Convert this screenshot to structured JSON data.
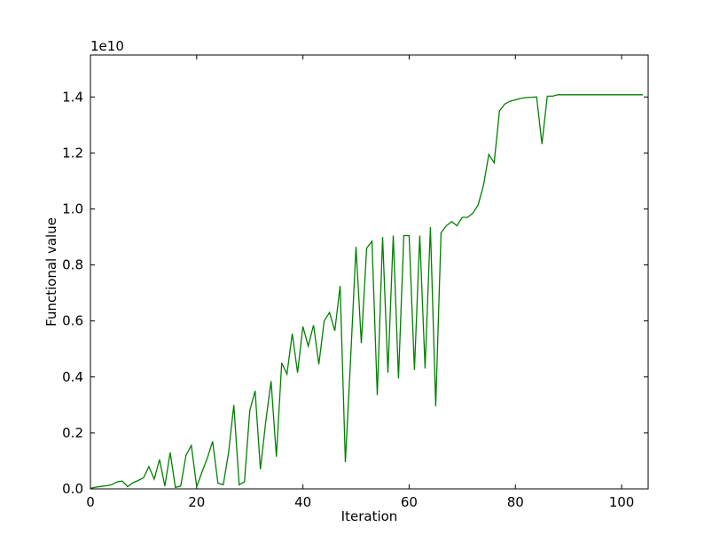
{
  "chart_data": {
    "type": "line",
    "title": "",
    "xlabel": "Iteration",
    "ylabel": "Functional value",
    "offset_label": "1e10",
    "xlim": [
      0,
      105
    ],
    "ylim": [
      0,
      1.55
    ],
    "xticks": [
      0,
      20,
      40,
      60,
      80,
      100
    ],
    "yticks": [
      0.0,
      0.2,
      0.4,
      0.6,
      0.8,
      1.0,
      1.2,
      1.4
    ],
    "xtick_labels": [
      "0",
      "20",
      "40",
      "60",
      "80",
      "100"
    ],
    "ytick_labels": [
      "0.0",
      "0.2",
      "0.4",
      "0.6",
      "0.8",
      "1.0",
      "1.2",
      "1.4"
    ],
    "grid": false,
    "series": [
      {
        "color": "#008000",
        "x": [
          0,
          1,
          2,
          3,
          4,
          5,
          6,
          7,
          8,
          9,
          10,
          11,
          12,
          13,
          14,
          15,
          16,
          17,
          18,
          19,
          20,
          21,
          22,
          23,
          24,
          25,
          26,
          27,
          28,
          29,
          30,
          31,
          32,
          33,
          34,
          35,
          36,
          37,
          38,
          39,
          40,
          41,
          42,
          43,
          44,
          45,
          46,
          47,
          48,
          49,
          50,
          51,
          52,
          53,
          54,
          55,
          56,
          57,
          58,
          59,
          60,
          61,
          62,
          63,
          64,
          65,
          66,
          67,
          68,
          69,
          70,
          71,
          72,
          73,
          74,
          75,
          76,
          77,
          78,
          79,
          80,
          81,
          82,
          83,
          84,
          85,
          86,
          87,
          88,
          89,
          90,
          91,
          92,
          93,
          94,
          95,
          96,
          97,
          98,
          99,
          100,
          101,
          102,
          103,
          104
        ],
        "y": [
          0.002,
          0.006,
          0.009,
          0.011,
          0.015,
          0.025,
          0.028,
          0.008,
          0.022,
          0.03,
          0.04,
          0.08,
          0.035,
          0.105,
          0.01,
          0.13,
          0.005,
          0.01,
          0.12,
          0.155,
          0.008,
          0.06,
          0.11,
          0.17,
          0.02,
          0.015,
          0.13,
          0.3,
          0.015,
          0.025,
          0.28,
          0.35,
          0.07,
          0.24,
          0.385,
          0.115,
          0.45,
          0.41,
          0.555,
          0.415,
          0.58,
          0.51,
          0.585,
          0.445,
          0.6,
          0.63,
          0.565,
          0.725,
          0.095,
          0.47,
          0.865,
          0.52,
          0.86,
          0.885,
          0.335,
          0.9,
          0.415,
          0.905,
          0.395,
          0.905,
          0.905,
          0.425,
          0.905,
          0.43,
          0.935,
          0.295,
          0.915,
          0.94,
          0.955,
          0.94,
          0.97,
          0.97,
          0.985,
          1.015,
          1.085,
          1.195,
          1.165,
          1.35,
          1.375,
          1.385,
          1.39,
          1.395,
          1.398,
          1.399,
          1.4,
          1.232,
          1.403,
          1.403,
          1.408,
          1.408,
          1.408,
          1.408,
          1.408,
          1.408,
          1.408,
          1.408,
          1.408,
          1.408,
          1.408,
          1.408,
          1.408,
          1.408,
          1.408,
          1.408,
          1.408
        ]
      }
    ]
  }
}
